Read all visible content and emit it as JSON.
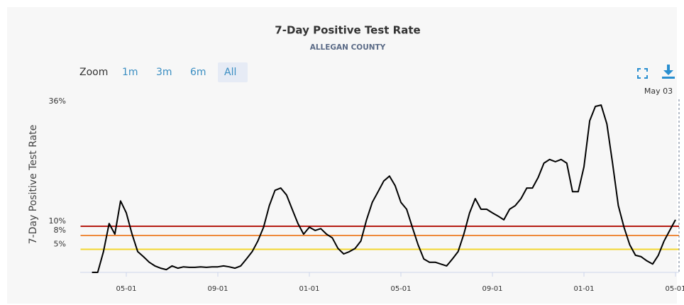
{
  "chart_data": {
    "type": "line",
    "title": "7-Day Positive Test Rate",
    "subtitle": "ALLEGAN COUNTY",
    "y_label": "7-Day Positive Test Rate",
    "zoom_label": "Zoom",
    "zoom_buttons": [
      "1m",
      "3m",
      "6m",
      "All"
    ],
    "zoom_selected": 3,
    "crosshair_label": "May 03",
    "categories": [
      null,
      null,
      null,
      null,
      null,
      null,
      null,
      null,
      "05-01",
      null,
      null,
      null,
      null,
      null,
      null,
      null,
      null,
      null,
      null,
      null,
      null,
      null,
      null,
      null,
      "09-01",
      null,
      null,
      null,
      null,
      null,
      null,
      null,
      null,
      null,
      null,
      null,
      null,
      null,
      null,
      null,
      "01-01",
      null,
      null,
      null,
      null,
      null,
      null,
      null,
      null,
      null,
      null,
      null,
      null,
      null,
      null,
      null,
      "05-01",
      null,
      null,
      null,
      null,
      null,
      null,
      null,
      null,
      null,
      null,
      null,
      null,
      null,
      null,
      null,
      "09-01",
      null,
      null,
      null,
      null,
      null,
      null,
      null,
      null,
      null,
      null,
      null,
      null,
      null,
      null,
      null,
      "01-01",
      null,
      null,
      null,
      null,
      null,
      null,
      null,
      null,
      null,
      null,
      null,
      null,
      null,
      null,
      null,
      "05-01"
    ],
    "series": [
      {
        "color": "#000000",
        "values": [
          null,
          null,
          0,
          0,
          4.5,
          10.6,
          8.3,
          15.5,
          12.9,
          8.3,
          4.5,
          3.4,
          2.2,
          1.4,
          0.9,
          0.6,
          1.4,
          0.9,
          1.2,
          1.1,
          1.1,
          1.2,
          1.1,
          1.2,
          1.2,
          1.4,
          1.2,
          0.9,
          1.4,
          2.9,
          4.5,
          6.8,
          9.8,
          14.5,
          17.8,
          18.3,
          16.8,
          13.7,
          10.6,
          8.3,
          9.8,
          9.1,
          9.5,
          8.3,
          7.5,
          5.2,
          4.0,
          4.5,
          5.2,
          6.8,
          11.4,
          15.2,
          17.5,
          19.8,
          20.9,
          18.8,
          15.2,
          13.7,
          9.8,
          6.0,
          2.9,
          2.2,
          2.2,
          1.8,
          1.4,
          2.9,
          4.5,
          8.3,
          12.9,
          16.0,
          13.7,
          13.7,
          12.9,
          12.2,
          11.4,
          13.7,
          14.5,
          16.0,
          18.3,
          18.3,
          20.6,
          23.7,
          24.5,
          24.0,
          24.5,
          23.7,
          17.5,
          17.5,
          22.9,
          32.9,
          36.0,
          36.3,
          32.2,
          23.7,
          14.5,
          9.8,
          6.0,
          3.7,
          3.4,
          2.5,
          1.8,
          3.7,
          6.8,
          9.1,
          11.4
        ]
      }
    ],
    "ylim": [
      0,
      38
    ],
    "yticks": [
      {
        "value": 5,
        "label": "5%"
      },
      {
        "value": 8,
        "label": "8%"
      },
      {
        "value": 10,
        "label": "10%"
      },
      {
        "value": 36,
        "label": "36%"
      }
    ],
    "plot_lines": [
      {
        "value": 10,
        "color": "#b51d14"
      },
      {
        "value": 8,
        "color": "#ee8a3c"
      },
      {
        "value": 5,
        "color": "#f2d630"
      }
    ]
  }
}
